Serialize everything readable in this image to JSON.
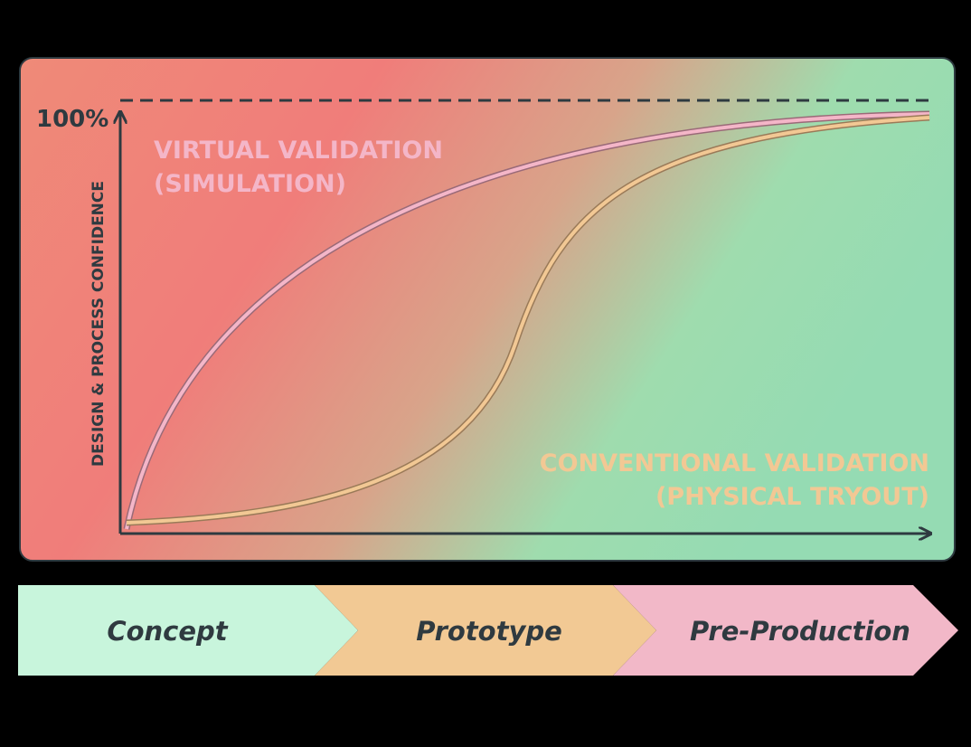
{
  "chart": {
    "max_label": "100%",
    "y_axis_label": "DESIGN & PROCESS CONFIDENCE",
    "curves": [
      {
        "label_lines": [
          "VIRTUAL VALIDATION",
          "(SIMULATION)"
        ]
      },
      {
        "label_lines": [
          "CONVENTIONAL VALIDATION",
          "(PHYSICAL TRYOUT)"
        ]
      }
    ]
  },
  "phases": [
    "Concept",
    "Prototype",
    "Pre-Production"
  ]
}
